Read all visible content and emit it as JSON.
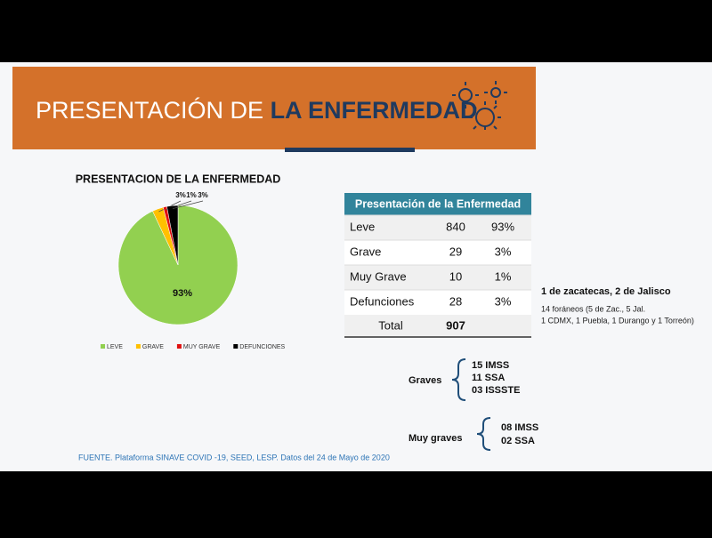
{
  "header": {
    "title_light": "PRESENTACIÓN DE",
    "title_bold": "LA ENFERMEDAD"
  },
  "chart_data": {
    "type": "pie",
    "title": "PRESENTACION DE LA ENFERMEDAD",
    "categories": [
      "LEVE",
      "GRAVE",
      "MUY GRAVE",
      "DEFUNCIONES"
    ],
    "values": [
      93,
      3,
      1,
      3
    ],
    "value_labels": [
      "93%",
      "3%",
      "1%",
      "3%"
    ],
    "colors": [
      "#92d050",
      "#ffc000",
      "#e01010",
      "#000000"
    ],
    "legend": "bottom"
  },
  "table": {
    "title": "Presentación de la Enfermedad",
    "rows": [
      [
        "Leve",
        "840",
        "93%"
      ],
      [
        "Grave",
        "29",
        "3%"
      ],
      [
        "Muy Grave",
        "10",
        "1%"
      ],
      [
        "Defunciones",
        "28",
        "3%"
      ]
    ],
    "total": [
      "Total",
      "907"
    ]
  },
  "notes": {
    "heading": "1 de zacatecas, 2 de Jalisco",
    "lines": [
      "14 foráneos (5 de Zac., 5 Jal.",
      "1 CDMX, 1 Puebla, 1 Durango y 1 Torreón)"
    ]
  },
  "graves": {
    "label": "Graves",
    "items": [
      "15  IMSS",
      "11 SSA",
      "03 ISSSTE"
    ]
  },
  "muy_graves": {
    "label": "Muy graves",
    "items": [
      "08 IMSS",
      "02 SSA"
    ]
  },
  "footer": "FUENTE. Plataforma SINAVE COVID -19, SEED, LESP. Datos del 24 de Mayo de 2020"
}
